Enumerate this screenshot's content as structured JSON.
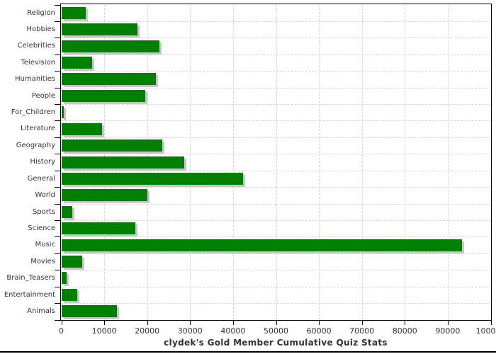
{
  "chart_data": {
    "type": "bar",
    "orientation": "horizontal",
    "title": "clydek's Gold Member Cumulative Quiz Stats",
    "categories": [
      "Religion",
      "Hobbies",
      "Celebrities",
      "Television",
      "Humanities",
      "People",
      "For_Children",
      "Literature",
      "Geography",
      "History",
      "General",
      "World",
      "Sports",
      "Science",
      "Music",
      "Movies",
      "Brain_Teasers",
      "Entertainment",
      "Animals"
    ],
    "values": [
      5600,
      17700,
      22800,
      7100,
      21900,
      19500,
      500,
      9400,
      23500,
      28600,
      42200,
      19900,
      2500,
      17200,
      93200,
      4800,
      1200,
      3600,
      12800
    ],
    "xlim": [
      0,
      100000
    ],
    "x_ticks": [
      0,
      10000,
      20000,
      30000,
      40000,
      50000,
      60000,
      70000,
      80000,
      90000,
      100000
    ],
    "x_tick_labels": [
      "0",
      "10000",
      "20000",
      "30000",
      "40000",
      "50000",
      "60000",
      "70000",
      "80000",
      "90000",
      "100000"
    ],
    "xlabel": "",
    "ylabel": "",
    "legend": "none",
    "grid": {
      "vertical": "dashed line at every x tick",
      "horizontal": "dashed line at every category row boundary"
    },
    "colors": {
      "bar": "#008000",
      "bar_shadow": "#c6c6c6",
      "grid": "#ccd4da",
      "axis": "#000000",
      "text": "#333333",
      "background": "#ffffff"
    }
  }
}
